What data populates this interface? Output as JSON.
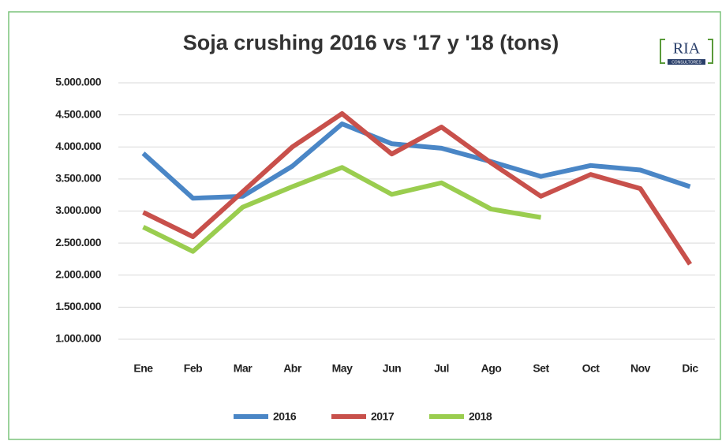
{
  "chart_data": {
    "type": "line",
    "title": "Soja crushing 2016 vs '17 y '18 (tons)",
    "logo": {
      "name": "RIA",
      "subtitle": "CONSULTORES"
    },
    "categories": [
      "Ene",
      "Feb",
      "Mar",
      "Abr",
      "May",
      "Jun",
      "Jul",
      "Ago",
      "Set",
      "Oct",
      "Nov",
      "Dic"
    ],
    "series": [
      {
        "name": "2016",
        "color": "#4a86c6",
        "values": [
          3900000,
          3200000,
          3230000,
          3700000,
          4360000,
          4050000,
          3980000,
          3770000,
          3540000,
          3710000,
          3640000,
          3380000
        ]
      },
      {
        "name": "2017",
        "color": "#c8504b",
        "values": [
          2980000,
          2600000,
          3300000,
          4000000,
          4520000,
          3890000,
          4310000,
          3750000,
          3230000,
          3570000,
          3350000,
          2170000
        ]
      },
      {
        "name": "2018",
        "color": "#9acd4f",
        "values": [
          2750000,
          2370000,
          3060000,
          3380000,
          3680000,
          3260000,
          3440000,
          3030000,
          2900000,
          null,
          null,
          null
        ]
      }
    ],
    "ylim": [
      1000000,
      5000000
    ],
    "yticks": [
      {
        "value": 1000000,
        "label": "1.000.000"
      },
      {
        "value": 1500000,
        "label": "1.500.000"
      },
      {
        "value": 2000000,
        "label": "2.000.000"
      },
      {
        "value": 2500000,
        "label": "2.500.000"
      },
      {
        "value": 3000000,
        "label": "3.000.000"
      },
      {
        "value": 3500000,
        "label": "3.500.000"
      },
      {
        "value": 4000000,
        "label": "4.000.000"
      },
      {
        "value": 4500000,
        "label": "4.500.000"
      },
      {
        "value": 5000000,
        "label": "5.000.000"
      }
    ],
    "grid": true,
    "legend": "bottom"
  }
}
